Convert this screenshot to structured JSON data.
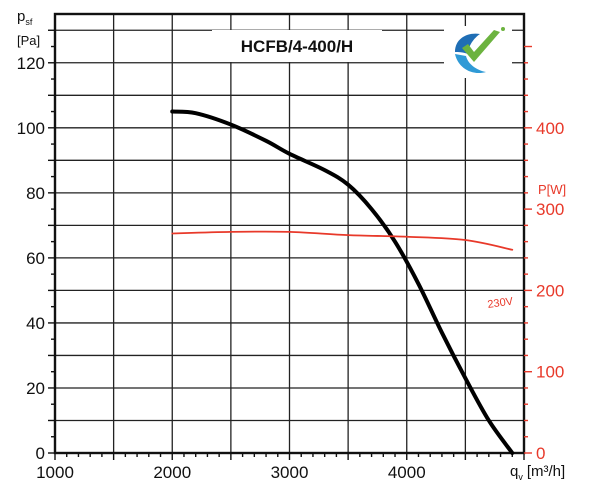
{
  "chart_data": {
    "type": "line",
    "title": "HCFB/4-400/H",
    "xlabel": "q",
    "xlabel_sub": "v",
    "xlabel_unit": "[m³/h]",
    "ylabel": "p",
    "ylabel_sub": "sf",
    "ylabel_unit": "[Pa]",
    "y2label": "P[W]",
    "xlim": [
      1000,
      5000
    ],
    "ylim": [
      0,
      135
    ],
    "y2lim": [
      0,
      540
    ],
    "x_ticks": [
      1000,
      2000,
      3000,
      4000
    ],
    "x_tick_labels": [
      "1000",
      "2000",
      "3000",
      "4000"
    ],
    "y_ticks": [
      0,
      20,
      40,
      60,
      80,
      100,
      120
    ],
    "y_tick_labels": [
      "0",
      "20",
      "40",
      "60",
      "80",
      "100",
      "120"
    ],
    "y2_ticks": [
      0,
      100,
      200,
      300,
      400
    ],
    "y2_tick_labels": [
      "0",
      "100",
      "200",
      "300",
      "400"
    ],
    "grid": true,
    "series": [
      {
        "axis": "left",
        "color": "#000000",
        "x": [
          2000,
          2200,
          2500,
          2800,
          3000,
          3300,
          3500,
          3700,
          3900,
          4100,
          4300,
          4500,
          4700,
          4900
        ],
        "y": [
          105,
          104.5,
          101,
          96,
          92,
          87,
          82.5,
          75,
          65,
          52,
          37,
          23,
          10,
          0
        ]
      },
      {
        "axis": "right",
        "color": "#e8392a",
        "label": "230V",
        "x": [
          2000,
          2500,
          3000,
          3500,
          4000,
          4500,
          4900
        ],
        "y": [
          270,
          272,
          272,
          268,
          266,
          262,
          250
        ]
      }
    ]
  },
  "colors": {
    "primary_curve": "#000000",
    "power_curve": "#e8392a",
    "grid": "#222222"
  },
  "logo": {
    "name": "check-logo-icon"
  }
}
